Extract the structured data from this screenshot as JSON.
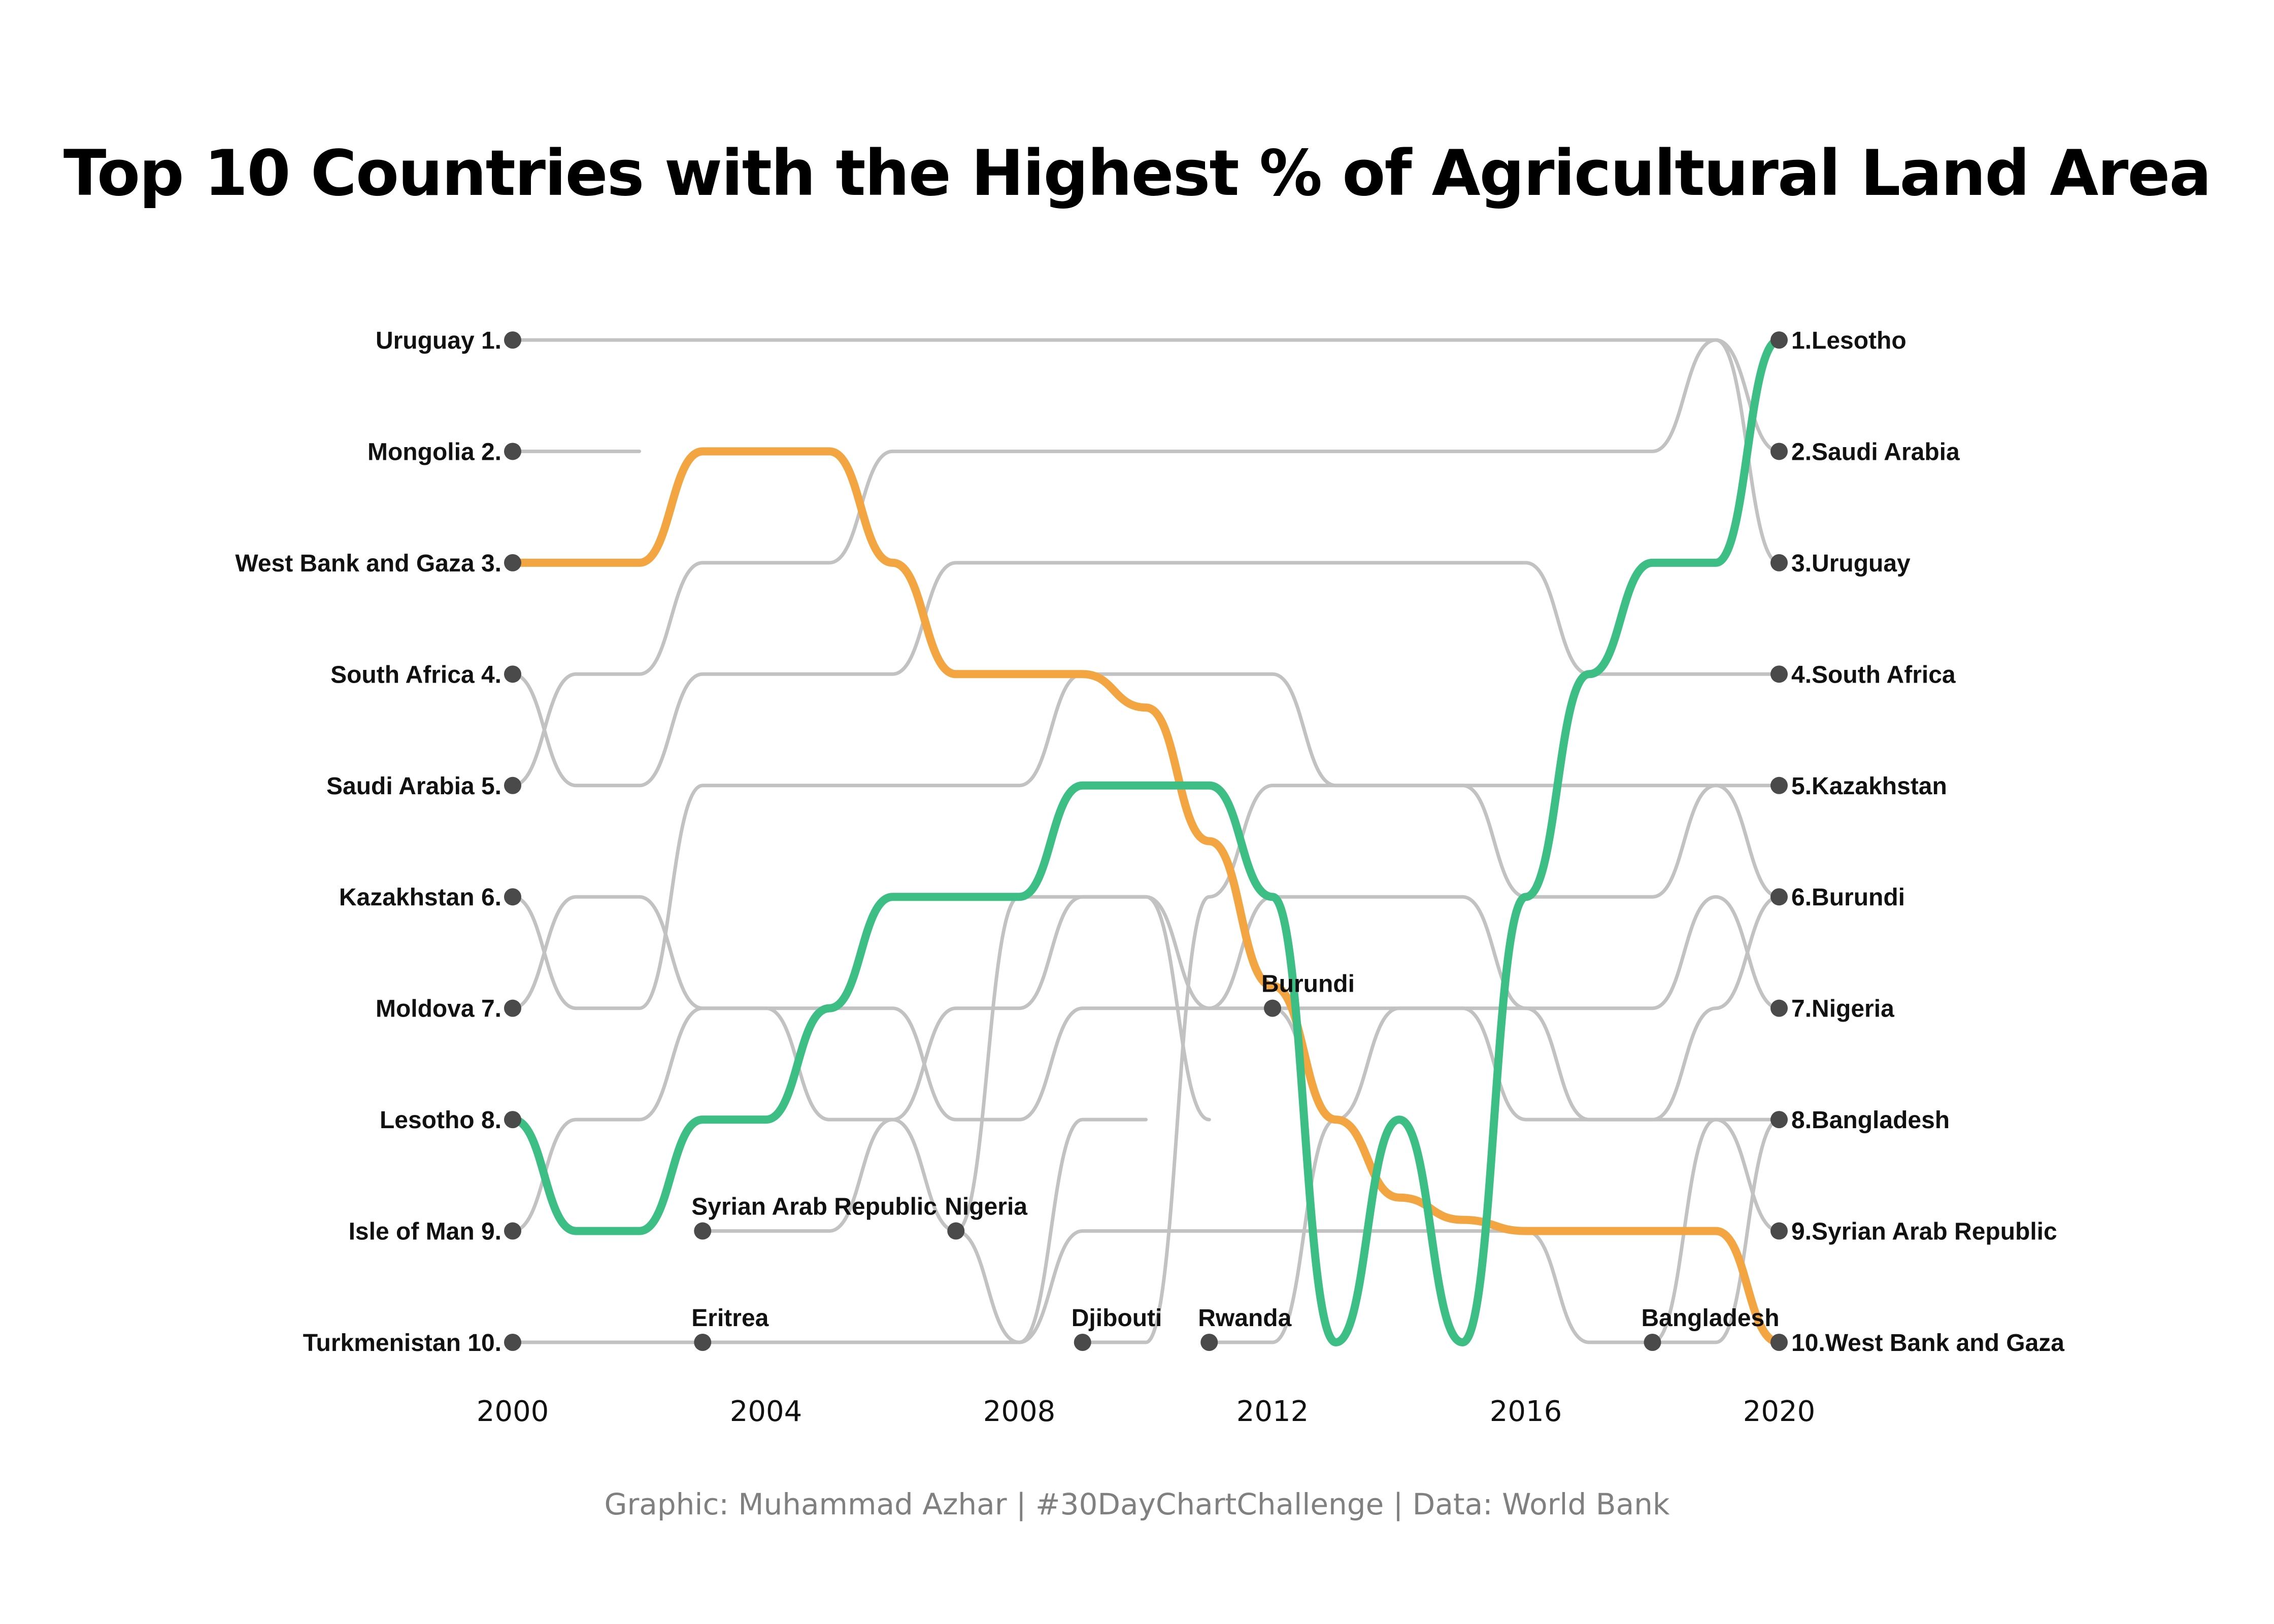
{
  "chart_data": {
    "type": "bump",
    "title": "Top 10 Countries with the Highest % of Agricultural Land Area",
    "caption": "Graphic: Muhammad Azhar | #30DayChartChallenge | Data: World Bank",
    "x_ticks": [
      "2000",
      "2004",
      "2008",
      "2012",
      "2016",
      "2020"
    ],
    "x_range": [
      2000,
      2020
    ],
    "rank_range": [
      1,
      10
    ],
    "left_labels": [
      "Uruguay 1.",
      "Mongolia 2.",
      "West Bank and Gaza 3.",
      "South Africa 4.",
      "Saudi Arabia 5.",
      "Kazakhstan 6.",
      "Moldova 7.",
      "Lesotho 8.",
      "Isle of Man 9.",
      "Turkmenistan 10."
    ],
    "right_labels": [
      "1.Lesotho",
      "2.Saudi Arabia",
      "3.Uruguay",
      "4.South Africa",
      "5.Kazakhstan",
      "6.Burundi",
      "7.Nigeria",
      "8.Bangladesh",
      "9.Syrian Arab Republic",
      "10.West Bank and Gaza"
    ],
    "entry_labels": [
      {
        "name": "Syrian Arab Republic",
        "year": 2003,
        "rank": 9
      },
      {
        "name": "Nigeria",
        "year": 2007,
        "rank": 9
      },
      {
        "name": "Eritrea",
        "year": 2003,
        "rank": 10
      },
      {
        "name": "Djibouti",
        "year": 2009,
        "rank": 10
      },
      {
        "name": "Rwanda",
        "year": 2011,
        "rank": 10
      },
      {
        "name": "Burundi",
        "year": 2012,
        "rank": 7
      },
      {
        "name": "Bangladesh",
        "year": 2018,
        "rank": 10
      }
    ],
    "highlight_series": [
      {
        "name": "West Bank and Gaza",
        "color": "#F2A541",
        "years": [
          2000,
          2001,
          2002,
          2003,
          2004,
          2005,
          2006,
          2007,
          2008,
          2009,
          2010,
          2011,
          2012,
          2013,
          2014,
          2015,
          2016,
          2017,
          2018,
          2019,
          2020
        ],
        "ranks": [
          3,
          3,
          3,
          2,
          2,
          2,
          3,
          4,
          4,
          4,
          4.3,
          5.5,
          6.8,
          8,
          8.7,
          8.9,
          9,
          9,
          9,
          9,
          10
        ]
      },
      {
        "name": "Lesotho",
        "color": "#3DBE85",
        "years": [
          2000,
          2001,
          2002,
          2003,
          2004,
          2005,
          2006,
          2007,
          2008,
          2009,
          2010,
          2011,
          2012,
          2013,
          2014,
          2015,
          2016,
          2017,
          2018,
          2019,
          2020
        ],
        "ranks": [
          8,
          9,
          9,
          8,
          8,
          7,
          6,
          6,
          6,
          5,
          5,
          5,
          6,
          10,
          8,
          10,
          6,
          4,
          3,
          3,
          1
        ]
      }
    ],
    "background_series": [
      {
        "name": "Uruguay",
        "years": [
          2000,
          2019,
          2020
        ],
        "ranks": [
          1,
          1,
          3
        ]
      },
      {
        "name": "Saudi Arabia",
        "years": [
          2000,
          2001,
          2002,
          2003,
          2004,
          2005,
          2006,
          2007,
          2018,
          2019,
          2020
        ],
        "ranks": [
          5,
          4,
          4,
          3,
          3,
          3,
          2,
          2,
          2,
          1,
          2
        ]
      },
      {
        "name": "Mongolia",
        "years": [
          2000,
          2002
        ],
        "ranks": [
          2,
          2
        ]
      },
      {
        "name": "South Africa",
        "years": [
          2000,
          2001,
          2002,
          2003,
          2004,
          2005,
          2006,
          2007,
          2008,
          2009,
          2010,
          2011,
          2016,
          2017,
          2018,
          2019,
          2020
        ],
        "ranks": [
          4,
          5,
          5,
          4,
          4,
          4,
          4,
          3,
          3,
          3,
          3,
          3,
          3,
          4,
          4,
          4,
          4
        ]
      },
      {
        "name": "Kazakhstan",
        "years": [
          2000,
          2001,
          2002,
          2003,
          2004,
          2005,
          2006,
          2007,
          2008,
          2009,
          2012,
          2013,
          2016,
          2017,
          2018,
          2019,
          2020
        ],
        "ranks": [
          6,
          7,
          7,
          5,
          5,
          5,
          5,
          5,
          5,
          4,
          4,
          5,
          5,
          5,
          5,
          5,
          5
        ]
      },
      {
        "name": "Moldova",
        "years": [
          2000,
          2001,
          2002,
          2003,
          2004,
          2005,
          2006,
          2007,
          2008,
          2009,
          2010,
          2011
        ],
        "ranks": [
          7,
          6,
          6,
          7,
          7,
          8,
          8,
          7,
          7,
          6,
          6,
          8
        ]
      },
      {
        "name": "Isle of Man",
        "years": [
          2000,
          2001,
          2002,
          2003,
          2004,
          2005,
          2006,
          2007,
          2008,
          2009,
          2010,
          2011,
          2012,
          2013
        ],
        "ranks": [
          9,
          8,
          8,
          7,
          7,
          7,
          7,
          8,
          8,
          7,
          7,
          7,
          7,
          8
        ]
      },
      {
        "name": "Turkmenistan",
        "years": [
          2000,
          2006
        ],
        "ranks": [
          10,
          10
        ]
      },
      {
        "name": "Syrian Arab Republic",
        "years": [
          2003,
          2005,
          2006,
          2007,
          2008,
          2009,
          2010,
          2011,
          2012,
          2013,
          2014,
          2015,
          2016,
          2017,
          2018,
          2019,
          2020
        ],
        "ranks": [
          9,
          9,
          8,
          9,
          10,
          9,
          9,
          9,
          9,
          9,
          9,
          9,
          9,
          10,
          10,
          8,
          9
        ]
      },
      {
        "name": "Nigeria",
        "years": [
          2007,
          2008,
          2009,
          2010,
          2011,
          2012,
          2013,
          2014,
          2015,
          2016,
          2017,
          2018,
          2019,
          2020
        ],
        "ranks": [
          9,
          6,
          6,
          6,
          7,
          6,
          6,
          6,
          6,
          7,
          7,
          7,
          6,
          7
        ]
      },
      {
        "name": "Djibouti",
        "years": [
          2009,
          2010,
          2011,
          2012,
          2013,
          2014,
          2015,
          2016,
          2017,
          2018,
          2019,
          2020
        ],
        "ranks": [
          10,
          10,
          6,
          5,
          5,
          5,
          5,
          6,
          6,
          6,
          5,
          6
        ]
      },
      {
        "name": "Rwanda",
        "years": [
          2011,
          2012,
          2013,
          2014,
          2015,
          2016,
          2017,
          2018,
          2019,
          2020
        ],
        "ranks": [
          10,
          10,
          8,
          7,
          7,
          7,
          8,
          8,
          8,
          8
        ]
      },
      {
        "name": "Burundi",
        "years": [
          2012,
          2013,
          2014,
          2015,
          2016,
          2017,
          2018,
          2019,
          2020
        ],
        "ranks": [
          7,
          7,
          7,
          7,
          8,
          8,
          8,
          7,
          6
        ]
      },
      {
        "name": "Eritrea",
        "years": [
          2003,
          2004,
          2005,
          2006,
          2007,
          2008,
          2009,
          2010
        ],
        "ranks": [
          10,
          10,
          10,
          10,
          10,
          10,
          8,
          8
        ]
      },
      {
        "name": "Bangladesh",
        "years": [
          2018,
          2019,
          2020
        ],
        "ranks": [
          10,
          10,
          8
        ]
      }
    ]
  }
}
